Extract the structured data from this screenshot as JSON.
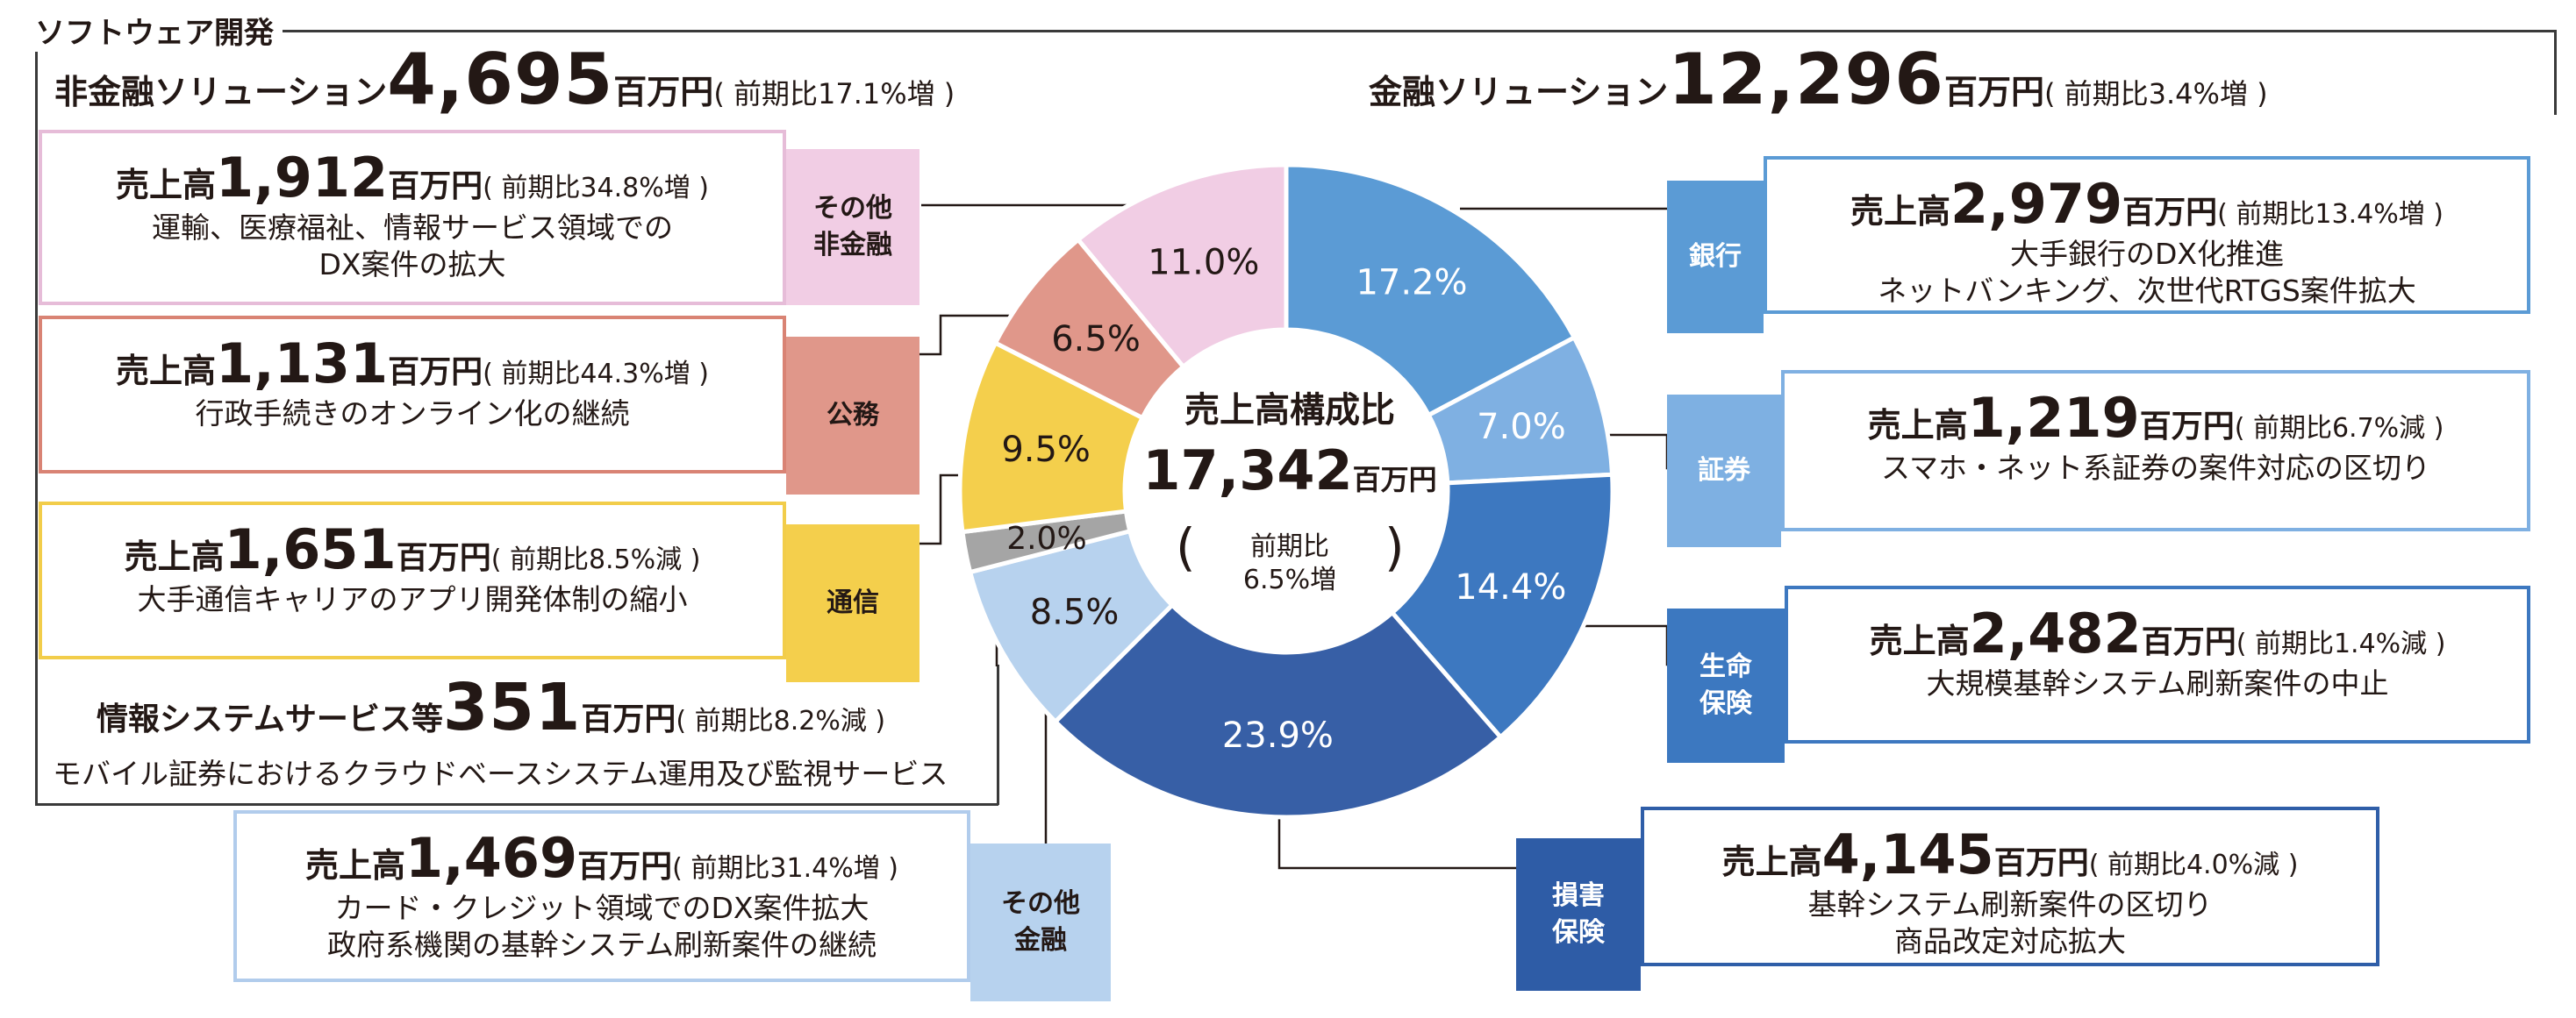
{
  "header": {
    "section_title": "ソフトウェア開発"
  },
  "non_financial": {
    "label": "非金融ソリューション",
    "value": "4,695",
    "unit": "百万円",
    "yoy": "( 前期比17.1%増 )"
  },
  "financial": {
    "label": "金融ソリューション",
    "value": "12,296",
    "unit": "百万円",
    "yoy": "( 前期比3.4%増 )"
  },
  "info_system": {
    "label": "情報システムサービス等",
    "value": "351",
    "unit": "百万円",
    "yoy": "( 前期比8.2%減 )",
    "desc": "モバイル証券におけるクラウドベースシステム運用及び監視サービス"
  },
  "center": {
    "title": "売上高構成比",
    "total": "17,342",
    "unit": "百万円",
    "open": "(",
    "yoy1": "前期比",
    "yoy2": "6.5%増",
    "close": ")"
  },
  "segments": [
    {
      "tab": "その他\n非金融",
      "sales_label": "売上高",
      "value": "1,912",
      "unit": "百万円",
      "yoy": "( 前期比34.8%増 )",
      "desc1": "運輸、医療福祉、情報サービス領域での",
      "desc2": "DX案件の拡大",
      "color": "#d8a6cb",
      "tab_fill": "#f1cde4"
    },
    {
      "tab": "公務",
      "sales_label": "売上高",
      "value": "1,131",
      "unit": "百万円",
      "yoy": "( 前期比44.3%増 )",
      "desc1": "行政手続きのオンライン化の継続",
      "desc2": "",
      "color": "#d98374",
      "tab_fill": "#e0978a"
    },
    {
      "tab": "通信",
      "sales_label": "売上高",
      "value": "1,651",
      "unit": "百万円",
      "yoy": "( 前期比8.5%減 )",
      "desc1": "大手通信キャリアのアプリ開発体制の縮小",
      "desc2": "",
      "color": "#f2cd4a",
      "tab_fill": "#f4cf4c"
    },
    {
      "tab": "その他\n金融",
      "sales_label": "売上高",
      "value": "1,469",
      "unit": "百万円",
      "yoy": "( 前期比31.4%増 )",
      "desc1": "カード・クレジット領域でのDX案件拡大",
      "desc2": "政府系機関の基幹システム刷新案件の継続",
      "color": "#b1ccec",
      "tab_fill": "#b7d2ee"
    },
    {
      "tab": "銀行",
      "sales_label": "売上高",
      "value": "2,979",
      "unit": "百万円",
      "yoy": "( 前期比13.4%増 )",
      "desc1": "大手銀行のDX化推進",
      "desc2": "ネットバンキング、次世代RTGS案件拡大",
      "color": "#5b9bd5",
      "tab_fill": "#5b9bd5"
    },
    {
      "tab": "証券",
      "sales_label": "売上高",
      "value": "1,219",
      "unit": "百万円",
      "yoy": "( 前期比6.7%減 )",
      "desc1": "スマホ・ネット系証券の案件対応の区切り",
      "desc2": "",
      "color": "#7fb0e2",
      "tab_fill": "#7eb0e2"
    },
    {
      "tab": "生命\n保険",
      "sales_label": "売上高",
      "value": "2,482",
      "unit": "百万円",
      "yoy": "( 前期比1.4%減 )",
      "desc1": "大規模基幹システム刷新案件の中止",
      "desc2": "",
      "color": "#3d78c0",
      "tab_fill": "#3c78c0"
    },
    {
      "tab": "損害\n保険",
      "sales_label": "売上高",
      "value": "4,145",
      "unit": "百万円",
      "yoy": "( 前期比4.0%減 )",
      "desc1": "基幹システム刷新案件の区切り",
      "desc2": "商品改定対応拡大",
      "color": "#2f5ea8",
      "tab_fill": "#2e5ca6"
    }
  ],
  "chart_data": {
    "type": "pie",
    "donut": true,
    "categories": [
      "銀行",
      "証券",
      "生命保険",
      "損害保険",
      "その他金融",
      "情報システムサービス等",
      "通信",
      "公務",
      "その他非金融"
    ],
    "values": [
      17.2,
      7.0,
      14.4,
      23.9,
      8.5,
      2.0,
      9.5,
      6.5,
      11.0
    ],
    "labels": [
      "17.2%",
      "7.0%",
      "14.4%",
      "23.9%",
      "8.5%",
      "2.0%",
      "9.5%",
      "6.5%",
      "11.0%"
    ],
    "colors": [
      "#5b9bd5",
      "#7fb0e2",
      "#3d78c0",
      "#375fa6",
      "#b7d2ee",
      "#a5a5a5",
      "#f4cf4c",
      "#e0978a",
      "#f1cde4"
    ],
    "label_colors": [
      "#ffffff",
      "#ffffff",
      "#ffffff",
      "#ffffff",
      "#231815",
      "#231815",
      "#231815",
      "#231815",
      "#231815"
    ]
  }
}
